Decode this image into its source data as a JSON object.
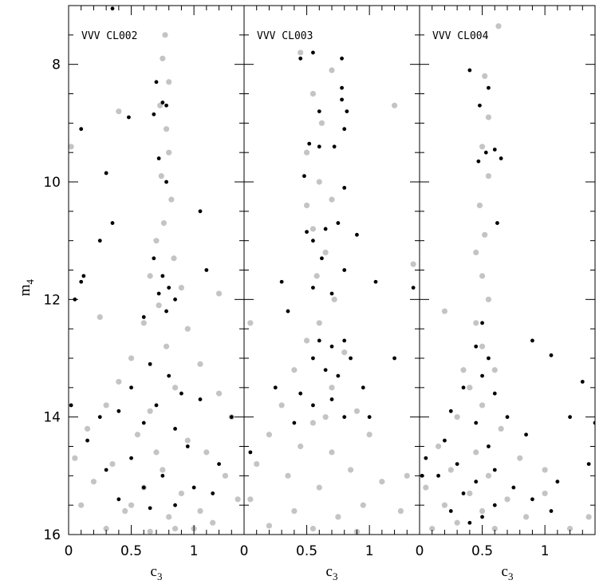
{
  "chart_data": [
    {
      "type": "scatter",
      "title": "VVV CL002",
      "ylabel": "m",
      "ylabel_sub": "4",
      "xlabel": "c",
      "xlabel_sub": "3",
      "xlim": [
        0,
        1.4
      ],
      "ylim": [
        16,
        7
      ],
      "y_inverted": true,
      "xticks": [
        0,
        0.5,
        1
      ],
      "yticks": [
        8,
        10,
        12,
        14,
        16
      ],
      "xminorticks": [
        0.1,
        0.2,
        0.3,
        0.4,
        0.6,
        0.7,
        0.8,
        0.9,
        1.1,
        1.2,
        1.3
      ],
      "yminorticks": [
        7.5,
        8.5,
        9,
        9.5,
        10.5,
        11,
        11.5,
        12.5,
        13,
        13.5,
        14.5,
        15,
        15.5
      ],
      "series": [
        {
          "color": "#c4c4c4",
          "marker_size": 3.6,
          "x": [
            0.77,
            0.75,
            0.8,
            0.73,
            0.78,
            0.8,
            0.74,
            0.82,
            0.76,
            0.7,
            0.84,
            0.65,
            0.9,
            0.72,
            0.6,
            0.95,
            0.78,
            0.5,
            1.05,
            0.4,
            0.85,
            1.2,
            0.3,
            0.65,
            1.3,
            0.15,
            0.55,
            0.95,
            1.1,
            0.05,
            0.35,
            0.75,
            1.25,
            0.2,
            0.6,
            0.9,
            1.35,
            0.1,
            0.45,
            0.8,
            1.15,
            0.3,
            0.65,
            1.0,
            0.02,
            0.4,
            1.2,
            0.25,
            0.5,
            0.7,
            0.85,
            1.05
          ],
          "values": [
            7.5,
            7.9,
            8.3,
            8.7,
            9.1,
            9.5,
            9.9,
            10.3,
            10.7,
            11.0,
            11.3,
            11.6,
            11.8,
            12.1,
            12.4,
            12.5,
            12.8,
            13.0,
            13.1,
            13.4,
            13.5,
            13.6,
            13.8,
            13.9,
            14.0,
            14.2,
            14.3,
            14.4,
            14.6,
            14.7,
            14.8,
            14.9,
            15.0,
            15.1,
            15.2,
            15.3,
            15.4,
            15.5,
            15.6,
            15.7,
            15.8,
            15.9,
            15.95,
            15.9,
            9.4,
            8.8,
            11.9,
            12.3,
            15.5,
            14.6,
            15.9,
            15.6
          ]
        },
        {
          "color": "#000000",
          "marker_size": 2.4,
          "x": [
            0.35,
            0.1,
            0.48,
            0.68,
            0.7,
            0.75,
            0.78,
            0.3,
            0.72,
            0.78,
            0.35,
            1.05,
            0.25,
            0.68,
            0.75,
            0.8,
            0.72,
            0.85,
            0.78,
            0.1,
            0.05,
            0.12,
            0.6,
            1.1,
            0.65,
            0.8,
            0.5,
            0.9,
            0.7,
            0.4,
            1.05,
            0.25,
            0.6,
            0.85,
            0.15,
            0.95,
            0.5,
            1.2,
            0.3,
            0.75,
            0.6,
            1.0,
            0.4,
            0.85,
            0.65,
            1.15,
            0.02,
            1.3
          ],
          "values": [
            7.05,
            9.1,
            8.9,
            8.85,
            8.3,
            8.65,
            8.7,
            9.85,
            9.6,
            10.0,
            10.7,
            10.5,
            11.0,
            11.3,
            11.6,
            11.8,
            11.9,
            12.0,
            12.2,
            11.7,
            12.0,
            11.6,
            12.3,
            11.5,
            13.1,
            13.3,
            13.5,
            13.6,
            13.8,
            13.9,
            13.7,
            14.0,
            14.1,
            14.2,
            14.4,
            14.5,
            14.7,
            14.8,
            14.9,
            15.0,
            15.2,
            15.2,
            15.4,
            15.5,
            15.55,
            15.3,
            13.8,
            14.0
          ]
        }
      ]
    },
    {
      "type": "scatter",
      "title": "VVV CL003",
      "xlabel": "c",
      "xlabel_sub": "3",
      "xlim": [
        0,
        1.4
      ],
      "ylim": [
        16,
        7
      ],
      "y_inverted": true,
      "xticks": [
        0,
        0.5,
        1
      ],
      "yticks": [
        8,
        10,
        12,
        14,
        16
      ],
      "xminorticks": [
        0.1,
        0.2,
        0.3,
        0.4,
        0.6,
        0.7,
        0.8,
        0.9,
        1.1,
        1.2,
        1.3
      ],
      "yminorticks": [
        7.5,
        8.5,
        9,
        9.5,
        10.5,
        11,
        11.5,
        12.5,
        13,
        13.5,
        14.5,
        15,
        15.5
      ],
      "series": [
        {
          "color": "#c4c4c4",
          "marker_size": 3.6,
          "x": [
            0.45,
            0.7,
            0.55,
            0.62,
            0.5,
            0.6,
            0.7,
            0.55,
            0.65,
            0.58,
            0.72,
            0.6,
            0.5,
            0.8,
            0.4,
            0.7,
            0.3,
            0.9,
            0.55,
            0.2,
            1.0,
            0.45,
            0.7,
            0.1,
            0.85,
            0.35,
            1.1,
            0.6,
            0.05,
            0.95,
            0.4,
            0.75,
            1.25,
            0.2,
            0.55,
            0.9,
            1.2,
            1.35,
            0.05,
            1.3,
            0.5,
            0.65
          ],
          "values": [
            7.8,
            8.1,
            8.5,
            9.0,
            9.5,
            10.0,
            10.3,
            10.8,
            11.2,
            11.6,
            12.0,
            12.4,
            12.7,
            12.9,
            13.2,
            13.5,
            13.8,
            13.9,
            14.1,
            14.3,
            14.3,
            14.5,
            14.6,
            14.8,
            14.9,
            15.0,
            15.1,
            15.2,
            15.4,
            15.5,
            15.6,
            15.7,
            15.6,
            15.85,
            15.9,
            15.95,
            8.7,
            11.4,
            12.4,
            15.0,
            10.4,
            14.0
          ]
        },
        {
          "color": "#000000",
          "marker_size": 2.4,
          "x": [
            0.45,
            0.55,
            0.78,
            0.78,
            0.78,
            0.82,
            0.6,
            0.8,
            0.52,
            0.72,
            0.6,
            0.48,
            0.8,
            0.75,
            0.5,
            0.55,
            0.65,
            0.9,
            0.62,
            0.8,
            0.3,
            0.55,
            0.7,
            0.35,
            1.05,
            1.35,
            0.6,
            0.7,
            0.8,
            0.55,
            0.65,
            0.75,
            0.85,
            0.45,
            0.7,
            0.25,
            0.95,
            0.55,
            0.8,
            0.4,
            1.0,
            0.05,
            1.2
          ],
          "values": [
            7.9,
            7.8,
            7.9,
            8.4,
            8.6,
            8.8,
            8.8,
            9.1,
            9.35,
            9.4,
            9.4,
            9.9,
            10.1,
            10.7,
            10.85,
            11.0,
            10.8,
            10.9,
            11.3,
            11.5,
            11.7,
            11.8,
            11.9,
            12.2,
            11.7,
            11.8,
            12.7,
            12.8,
            12.7,
            13.0,
            13.2,
            13.3,
            13.0,
            13.6,
            13.7,
            13.5,
            13.5,
            13.8,
            14.0,
            14.1,
            14.0,
            14.6,
            13.0
          ]
        }
      ]
    },
    {
      "type": "scatter",
      "title": "VVV CL004",
      "xlabel": "c",
      "xlabel_sub": "3",
      "xlim": [
        0,
        1.4
      ],
      "ylim": [
        16,
        7
      ],
      "y_inverted": true,
      "xticks": [
        0,
        0.5,
        1
      ],
      "yticks": [
        8,
        10,
        12,
        14,
        16
      ],
      "xminorticks": [
        0.1,
        0.2,
        0.3,
        0.4,
        0.6,
        0.7,
        0.8,
        0.9,
        1.1,
        1.2,
        1.3
      ],
      "yminorticks": [
        7.5,
        8.5,
        9,
        9.5,
        10.5,
        11,
        11.5,
        12.5,
        13,
        13.5,
        14.5,
        15,
        15.5
      ],
      "series": [
        {
          "color": "#c4c4c4",
          "marker_size": 3.6,
          "x": [
            0.63,
            0.52,
            0.55,
            0.5,
            0.55,
            0.48,
            0.52,
            0.45,
            0.5,
            0.55,
            0.45,
            0.5,
            0.6,
            0.4,
            0.2,
            0.5,
            0.3,
            0.65,
            0.15,
            0.45,
            0.8,
            0.25,
            0.55,
            0.05,
            0.4,
            0.7,
            1.0,
            0.2,
            0.5,
            0.85,
            0.3,
            0.6,
            1.2,
            1.35,
            0.1,
            0.35,
            1.0
          ],
          "values": [
            7.35,
            8.2,
            8.9,
            9.4,
            9.9,
            10.4,
            10.9,
            11.2,
            11.6,
            12.0,
            12.4,
            12.8,
            13.2,
            13.5,
            12.2,
            13.8,
            14.0,
            14.2,
            14.5,
            14.6,
            14.7,
            14.9,
            15.0,
            15.2,
            15.3,
            15.4,
            15.3,
            15.5,
            15.6,
            15.7,
            15.8,
            15.9,
            15.9,
            15.7,
            15.9,
            13.2,
            14.9
          ]
        },
        {
          "color": "#000000",
          "marker_size": 2.4,
          "x": [
            0.4,
            0.55,
            0.48,
            0.53,
            0.6,
            0.65,
            0.47,
            0.62,
            0.5,
            0.45,
            0.55,
            0.5,
            0.9,
            1.05,
            0.35,
            0.6,
            0.25,
            0.45,
            0.7,
            0.2,
            0.55,
            0.85,
            1.2,
            0.05,
            0.3,
            0.6,
            1.35,
            0.15,
            0.45,
            0.75,
            1.1,
            0.35,
            0.6,
            0.9,
            0.25,
            0.5,
            1.05,
            0.4,
            0.02,
            1.3,
            1.4
          ],
          "values": [
            8.1,
            8.4,
            8.7,
            9.5,
            9.45,
            9.6,
            9.65,
            10.7,
            12.4,
            12.8,
            13.0,
            13.3,
            12.7,
            12.95,
            13.5,
            13.6,
            13.9,
            14.1,
            14.0,
            14.4,
            14.5,
            14.3,
            14.0,
            14.7,
            14.8,
            14.9,
            14.8,
            15.0,
            15.1,
            15.2,
            15.1,
            15.3,
            15.5,
            15.4,
            15.6,
            15.7,
            15.6,
            15.8,
            15.0,
            13.4,
            14.1
          ]
        }
      ]
    }
  ]
}
